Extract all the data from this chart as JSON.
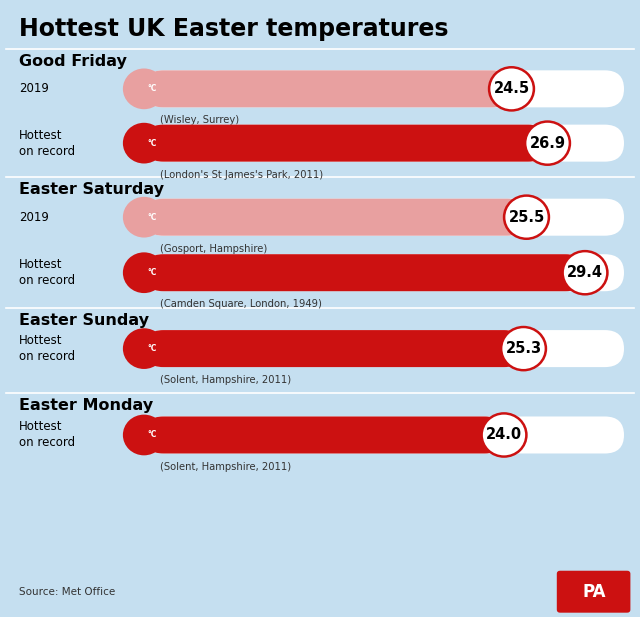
{
  "title": "Hottest UK Easter temperatures",
  "background_color": "#c5dff0",
  "sections": [
    {
      "heading": "Good Friday",
      "rows": [
        {
          "label": "2019",
          "value": 24.5,
          "location": "(Wisley, Surrey)",
          "bar_color": "#e8a0a0",
          "circle_fill": "#ffffff",
          "circle_border": "#cc1111",
          "is_record": false
        },
        {
          "label": "Hottest\non record",
          "value": 26.9,
          "location": "(London's St James's Park, 2011)",
          "bar_color": "#cc1111",
          "circle_fill": "#ffffff",
          "circle_border": "#cc1111",
          "is_record": true
        }
      ]
    },
    {
      "heading": "Easter Saturday",
      "rows": [
        {
          "label": "2019",
          "value": 25.5,
          "location": "(Gosport, Hampshire)",
          "bar_color": "#e8a0a0",
          "circle_fill": "#ffffff",
          "circle_border": "#cc1111",
          "is_record": false
        },
        {
          "label": "Hottest\non record",
          "value": 29.4,
          "location": "(Camden Square, London, 1949)",
          "bar_color": "#cc1111",
          "circle_fill": "#ffffff",
          "circle_border": "#cc1111",
          "is_record": true
        }
      ]
    },
    {
      "heading": "Easter Sunday",
      "rows": [
        {
          "label": "Hottest\non record",
          "value": 25.3,
          "location": "(Solent, Hampshire, 2011)",
          "bar_color": "#cc1111",
          "circle_fill": "#ffffff",
          "circle_border": "#cc1111",
          "is_record": true
        }
      ]
    },
    {
      "heading": "Easter Monday",
      "rows": [
        {
          "label": "Hottest\non record",
          "value": 24.0,
          "location": "(Solent, Hampshire, 2011)",
          "bar_color": "#cc1111",
          "circle_fill": "#ffffff",
          "circle_border": "#cc1111",
          "is_record": true
        }
      ]
    }
  ],
  "max_temp": 32.0,
  "source": "Source: Met Office",
  "pa_color": "#cc1111"
}
